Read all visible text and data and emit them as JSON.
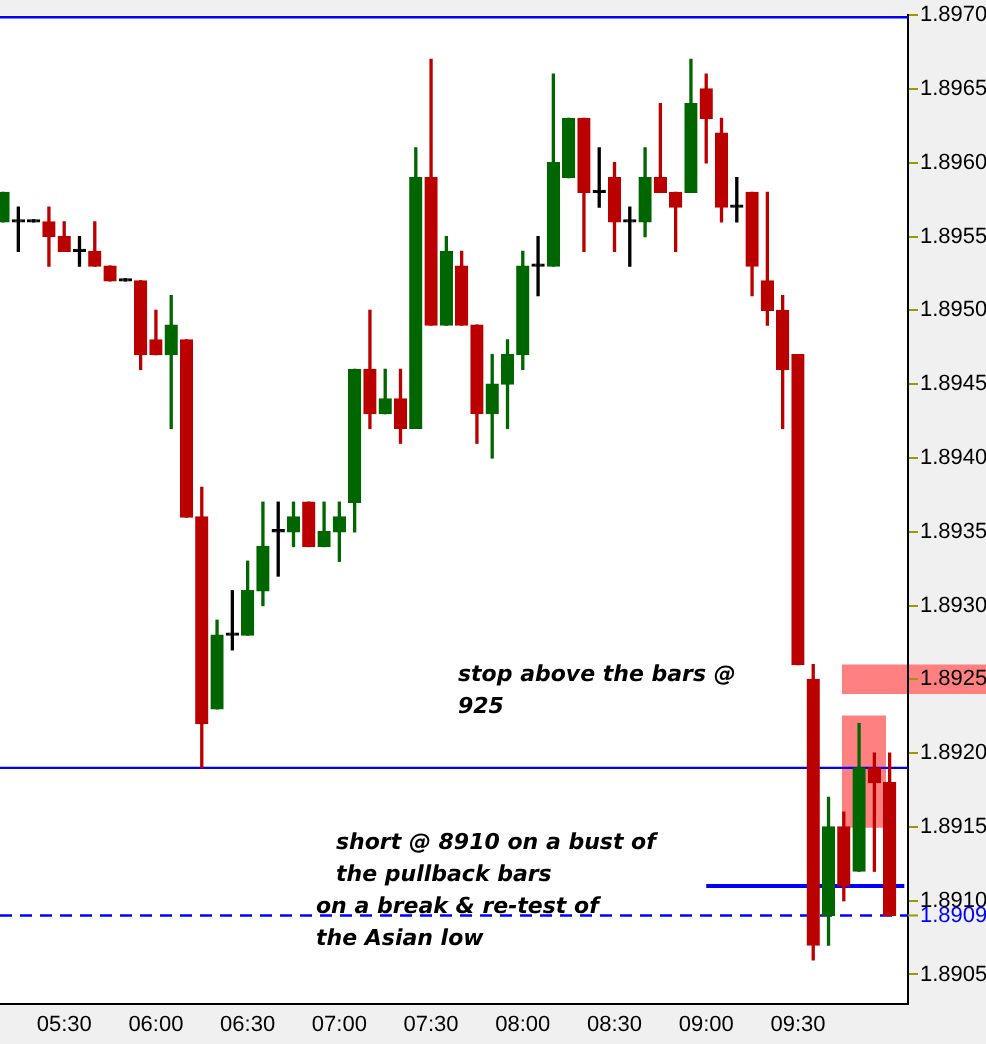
{
  "chart_data": {
    "type": "candlestick",
    "x": [
      5.1667,
      5.25,
      5.3333,
      5.4167,
      5.5,
      5.5833,
      5.6667,
      5.75,
      5.8333,
      5.9167,
      6.0,
      6.0833,
      6.1667,
      6.25,
      6.3333,
      6.4167,
      6.5,
      6.5833,
      6.6667,
      6.75,
      6.8333,
      6.9167,
      7.0,
      7.0833,
      7.1667,
      7.25,
      7.3333,
      7.4167,
      7.5,
      7.5833,
      7.6667,
      7.75,
      7.8333,
      7.9167,
      8.0,
      8.0833,
      8.1667,
      8.25,
      8.3333,
      8.4167,
      8.5,
      8.5833,
      8.6667,
      8.75,
      8.8333,
      8.9167,
      9.0,
      9.0833,
      9.1667,
      9.25,
      9.3333,
      9.4167,
      9.5,
      9.5833,
      9.6667,
      9.75,
      9.8333,
      9.9167,
      10.0
    ],
    "ohlc": [
      [
        1.8956,
        1.8958,
        1.8956,
        1.8958
      ],
      [
        1.8956,
        1.8957,
        1.8954,
        1.8956
      ],
      [
        1.8956,
        1.8956,
        1.8956,
        1.8956
      ],
      [
        1.8956,
        1.8957,
        1.8953,
        1.8955
      ],
      [
        1.8955,
        1.8956,
        1.8954,
        1.8954
      ],
      [
        1.8954,
        1.8955,
        1.8953,
        1.8954
      ],
      [
        1.8954,
        1.8956,
        1.8953,
        1.8953
      ],
      [
        1.8953,
        1.8953,
        1.8952,
        1.8952
      ],
      [
        1.8952,
        1.8952,
        1.8952,
        1.8952
      ],
      [
        1.8952,
        1.8952,
        1.8946,
        1.8947
      ],
      [
        1.8948,
        1.895,
        1.8947,
        1.8947
      ],
      [
        1.8947,
        1.8951,
        1.8942,
        1.8949
      ],
      [
        1.8948,
        1.8948,
        1.8936,
        1.8936
      ],
      [
        1.8936,
        1.8938,
        1.8919,
        1.8922
      ],
      [
        1.8923,
        1.8929,
        1.8923,
        1.8928
      ],
      [
        1.8928,
        1.8931,
        1.8927,
        1.8928
      ],
      [
        1.8928,
        1.8933,
        1.8928,
        1.8931
      ],
      [
        1.8931,
        1.8937,
        1.893,
        1.8934
      ],
      [
        1.8935,
        1.8937,
        1.8932,
        1.8935
      ],
      [
        1.8935,
        1.8937,
        1.8934,
        1.8936
      ],
      [
        1.8937,
        1.8937,
        1.8934,
        1.8934
      ],
      [
        1.8934,
        1.8937,
        1.8934,
        1.8935
      ],
      [
        1.8935,
        1.8937,
        1.8933,
        1.8936
      ],
      [
        1.8937,
        1.8946,
        1.8935,
        1.8946
      ],
      [
        1.8946,
        1.895,
        1.8942,
        1.8943
      ],
      [
        1.8943,
        1.8946,
        1.8943,
        1.8944
      ],
      [
        1.8944,
        1.8946,
        1.8941,
        1.8942
      ],
      [
        1.8942,
        1.8961,
        1.8942,
        1.8959
      ],
      [
        1.8959,
        1.8967,
        1.8949,
        1.8949
      ],
      [
        1.8949,
        1.8955,
        1.8949,
        1.8954
      ],
      [
        1.8953,
        1.8954,
        1.8949,
        1.8949
      ],
      [
        1.8949,
        1.8949,
        1.8941,
        1.8943
      ],
      [
        1.8943,
        1.8947,
        1.894,
        1.8945
      ],
      [
        1.8945,
        1.8948,
        1.8942,
        1.8947
      ],
      [
        1.8947,
        1.8954,
        1.8946,
        1.8953
      ],
      [
        1.8953,
        1.8955,
        1.8951,
        1.8953
      ],
      [
        1.8953,
        1.8966,
        1.8953,
        1.896
      ],
      [
        1.8959,
        1.8963,
        1.8959,
        1.8963
      ],
      [
        1.8963,
        1.8963,
        1.8954,
        1.8958
      ],
      [
        1.8958,
        1.8961,
        1.8957,
        1.8958
      ],
      [
        1.8959,
        1.896,
        1.8954,
        1.8956
      ],
      [
        1.8956,
        1.8957,
        1.8953,
        1.8956
      ],
      [
        1.8956,
        1.8961,
        1.8955,
        1.8959
      ],
      [
        1.8959,
        1.8964,
        1.8958,
        1.8958
      ],
      [
        1.8958,
        1.8958,
        1.8954,
        1.8957
      ],
      [
        1.8958,
        1.8967,
        1.8958,
        1.8964
      ],
      [
        1.8965,
        1.8966,
        1.896,
        1.8963
      ],
      [
        1.8962,
        1.8963,
        1.8956,
        1.8957
      ],
      [
        1.8957,
        1.8959,
        1.8956,
        1.8957
      ],
      [
        1.8958,
        1.8958,
        1.8951,
        1.8953
      ],
      [
        1.8952,
        1.8958,
        1.8949,
        1.895
      ],
      [
        1.895,
        1.8951,
        1.8942,
        1.8946
      ],
      [
        1.8947,
        1.8947,
        1.8926,
        1.8926
      ],
      [
        1.8925,
        1.8926,
        1.8906,
        1.8907
      ],
      [
        1.8909,
        1.8917,
        1.8907,
        1.8915
      ],
      [
        1.8915,
        1.8916,
        1.891,
        1.8911
      ],
      [
        1.8912,
        1.8922,
        1.8912,
        1.8919
      ],
      [
        1.8919,
        1.892,
        1.8912,
        1.8918
      ],
      [
        1.8918,
        1.892,
        1.8909,
        1.8909
      ]
    ],
    "colors": [
      "#006600",
      "#000000",
      "#000000",
      "#bb0000",
      "#bb0000",
      "#000000",
      "#bb0000",
      "#bb0000",
      "#000000",
      "#bb0000",
      "#bb0000",
      "#006600",
      "#bb0000",
      "#bb0000",
      "#006600",
      "#000000",
      "#006600",
      "#006600",
      "#000000",
      "#006600",
      "#bb0000",
      "#006600",
      "#006600",
      "#006600",
      "#bb0000",
      "#006600",
      "#bb0000",
      "#006600",
      "#bb0000",
      "#006600",
      "#bb0000",
      "#bb0000",
      "#006600",
      "#006600",
      "#006600",
      "#000000",
      "#006600",
      "#006600",
      "#bb0000",
      "#000000",
      "#bb0000",
      "#000000",
      "#006600",
      "#bb0000",
      "#bb0000",
      "#006600",
      "#bb0000",
      "#bb0000",
      "#000000",
      "#bb0000",
      "#bb0000",
      "#bb0000",
      "#bb0000",
      "#bb0000",
      "#006600",
      "#bb0000",
      "#006600",
      "#bb0000",
      "#bb0000"
    ],
    "series": [
      {
        "type": "line",
        "x": [
          9.0,
          10.08
        ],
        "values": [
          1.8911,
          1.8911
        ],
        "color": "#0000ff"
      }
    ],
    "xlim": [
      5.15,
      10.1
    ],
    "xticks": [
      {
        "value": 5.5,
        "label": "05:30"
      },
      {
        "value": 6.0,
        "label": "06:00"
      },
      {
        "value": 6.5,
        "label": "06:30"
      },
      {
        "value": 7.0,
        "label": "07:00"
      },
      {
        "value": 7.5,
        "label": "07:30"
      },
      {
        "value": 8.0,
        "label": "08:00"
      },
      {
        "value": 8.5,
        "label": "08:30"
      },
      {
        "value": 9.0,
        "label": "09:00"
      },
      {
        "value": 9.5,
        "label": "09:30"
      }
    ],
    "ylim": [
      1.8903,
      1.897
    ],
    "yticks": [
      {
        "value": 1.8905,
        "label": "1.8905"
      },
      {
        "value": 1.891,
        "label": "1.8910"
      },
      {
        "value": 1.8915,
        "label": "1.8915"
      },
      {
        "value": 1.892,
        "label": "1.8920"
      },
      {
        "value": 1.8925,
        "label": "1.8925"
      },
      {
        "value": 1.893,
        "label": "1.8930"
      },
      {
        "value": 1.8935,
        "label": "1.8935"
      },
      {
        "value": 1.894,
        "label": "1.8940"
      },
      {
        "value": 1.8945,
        "label": "1.8945"
      },
      {
        "value": 1.895,
        "label": "1.8950"
      },
      {
        "value": 1.8955,
        "label": "1.8955"
      },
      {
        "value": 1.896,
        "label": "1.8960"
      },
      {
        "value": 1.8965,
        "label": "1.8965"
      },
      {
        "value": 1.897,
        "label": "1.8970"
      }
    ],
    "ref_lines": [
      {
        "axis": "y",
        "value": 1.897,
        "color": "#0000ff"
      },
      {
        "axis": "y",
        "value": 1.8919,
        "color": "#0000ff"
      },
      {
        "axis": "y",
        "value": 1.8909,
        "label": "1.8909",
        "color": "#0000ff",
        "line_style": "dashed"
      }
    ],
    "bands": [
      {
        "axis": "x",
        "from": 9.74,
        "to": 9.98,
        "color": "#ff8080"
      },
      {
        "axis": "y",
        "from": 1.8924,
        "to": 1.8926,
        "color": "#ff8080"
      }
    ],
    "annotations": [
      "stop above the bars @ 925",
      "short @ 8910 on a bust of the pullback bars",
      "on a break & re-test of the Asian low"
    ]
  }
}
